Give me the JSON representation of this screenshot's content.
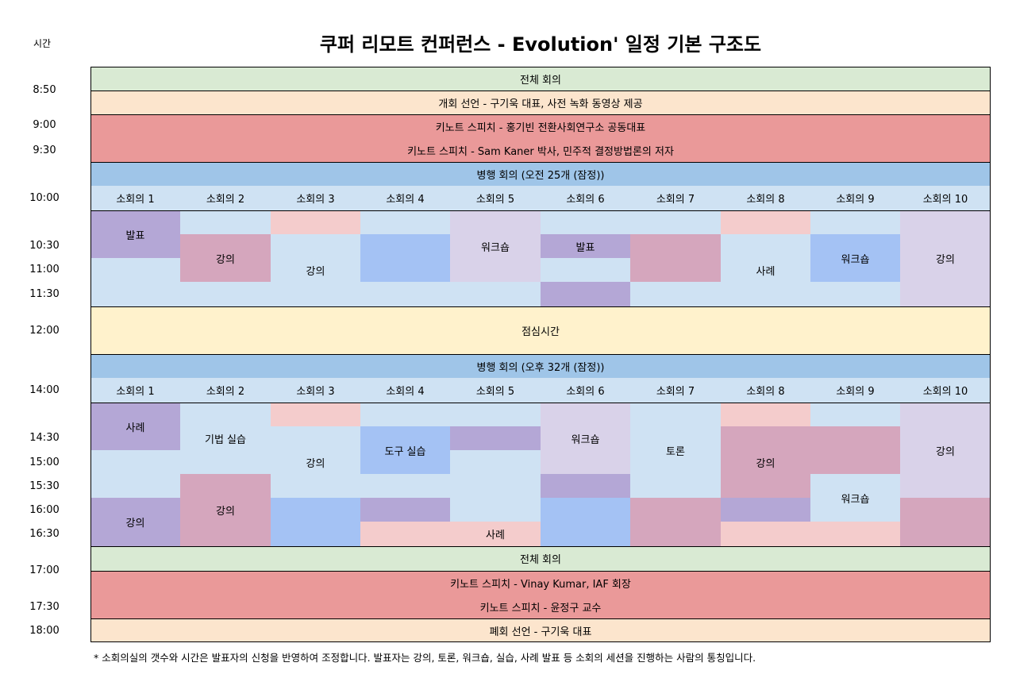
{
  "header": {
    "time_col_label": "시간",
    "title": "쿠퍼 리모트 컨퍼런스 - Evolution' 일정 기본 구조도"
  },
  "times": [
    "8:50",
    "9:00",
    "9:30",
    "10:00",
    "10:30",
    "11:00",
    "11:30",
    "12:00",
    "14:00",
    "14:30",
    "15:00",
    "15:30",
    "16:00",
    "16:30",
    "17:00",
    "17:30",
    "18:00"
  ],
  "colors": {
    "green": "#d9ead3",
    "peach": "#fce5cd",
    "red": "#ea9999",
    "blue_header": "#9fc5e8",
    "light_blue": "#cfe2f3",
    "purple": "#b4a7d6",
    "pink": "#f4cccc",
    "light_purple": "#d9d2e9",
    "mauve": "#d5a6bd",
    "blue": "#a4c2f4",
    "yellow": "#fff2cc"
  },
  "rows": {
    "plenary_am": "전체 회의",
    "opening": "개회 선언 - 구기욱 대표, 사전 녹화 동영상 제공",
    "keynote1": "키노트 스피치 - 홍기빈 전환사회연구소 공동대표",
    "keynote2": "키노트 스피치 - Sam Kaner 박사, 민주적 결정방법론의 저자",
    "parallel_am": "병행 회의 (오전 25개 (잠정))",
    "lunch": "점심시간",
    "parallel_pm": "병행 회의 (오후 32개 (잠정))",
    "plenary_pm": "전체 회의",
    "keynote3": "키노트 스피치 - Vinay Kumar, IAF 회장",
    "keynote4": "키노트 스피치 - 윤정구 교수",
    "closing": "폐회 선언 - 구기욱 대표"
  },
  "rooms": [
    "소회의 1",
    "소회의 2",
    "소회의 3",
    "소회의 4",
    "소회의 5",
    "소회의 6",
    "소회의 7",
    "소회의 8",
    "소회의 9",
    "소회의 10"
  ],
  "sessions": {
    "am": [
      {
        "room": 0,
        "label": "발표",
        "color": "purple"
      },
      {
        "room": 1,
        "label": "강의",
        "color": "mauve"
      },
      {
        "room": 2,
        "label": "강의",
        "color": "light_blue"
      },
      {
        "room": 4,
        "label": "워크숍",
        "color": "light_purple"
      },
      {
        "room": 5,
        "label": "발표",
        "color": "purple"
      },
      {
        "room": 7,
        "label": "사례",
        "color": "light_blue"
      },
      {
        "room": 8,
        "label": "워크숍",
        "color": "blue"
      },
      {
        "room": 9,
        "label": "강의",
        "color": "light_purple"
      }
    ],
    "pm": [
      {
        "room": 0,
        "label": "사례",
        "color": "purple"
      },
      {
        "room": 1,
        "label": "기법 실습",
        "color": "light_blue"
      },
      {
        "room": 2,
        "label": "강의",
        "color": "light_blue"
      },
      {
        "room": 3,
        "label": "도구 실습",
        "color": "blue"
      },
      {
        "room": 5,
        "label": "워크숍",
        "color": "light_purple"
      },
      {
        "room": 6,
        "label": "토론",
        "color": "light_blue"
      },
      {
        "room": 7,
        "label": "강의",
        "color": "mauve"
      },
      {
        "room": 9,
        "label": "강의",
        "color": "light_purple"
      },
      {
        "room": 0,
        "label": "강의",
        "color": "purple"
      },
      {
        "room": 1,
        "label": "강의",
        "color": "mauve"
      },
      {
        "room": 4,
        "label": "사례",
        "color": "pink"
      },
      {
        "room": 8,
        "label": "워크숍",
        "color": "light_blue"
      }
    ]
  },
  "footnote": "* 소회의실의 갯수와 시간은 발표자의 신청을 반영하여 조정합니다. 발표자는 강의, 토론, 워크숍, 실습, 사례 발표 등 소회의 세션을 진행하는 사람의 통칭입니다."
}
